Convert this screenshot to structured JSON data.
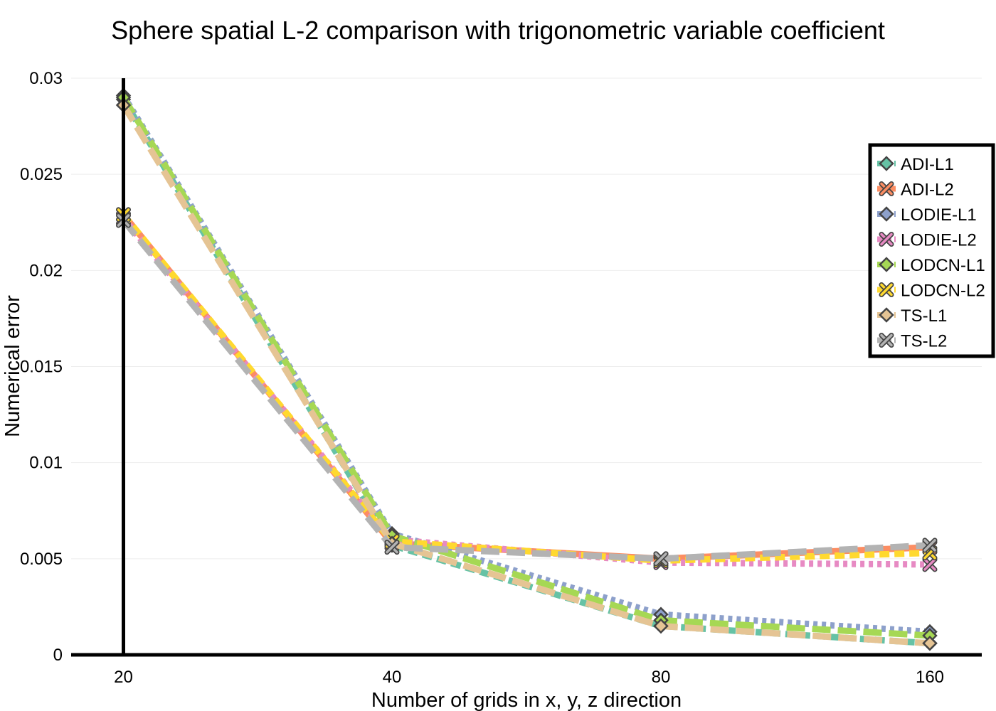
{
  "chart_data": {
    "type": "line",
    "title": "Sphere spatial L-2 comparison with trigonometric variable coefficient",
    "xlabel": "Number of grids in x, y, z direction",
    "ylabel": "Numerical error",
    "categories": [
      "20",
      "40",
      "80",
      "160"
    ],
    "y_ticks": [
      "0",
      "0.005",
      "0.01",
      "0.015",
      "0.02",
      "0.025",
      "0.03"
    ],
    "ylim": [
      0,
      0.03
    ],
    "grid": true,
    "legend_position": "right",
    "series": [
      {
        "name": "ADI-L1",
        "values": [
          0.0289,
          0.0057,
          0.0015,
          0.0006
        ],
        "color": "#66c2a5",
        "marker": "diamond",
        "dash": "dash"
      },
      {
        "name": "ADI-L2",
        "values": [
          0.0229,
          0.0058,
          0.005,
          0.0056
        ],
        "color": "#fc8d62",
        "marker": "x",
        "dash": "solid"
      },
      {
        "name": "LODIE-L1",
        "values": [
          0.0291,
          0.0063,
          0.0021,
          0.0012
        ],
        "color": "#8da0cb",
        "marker": "diamond",
        "dash": "dot"
      },
      {
        "name": "LODIE-L2",
        "values": [
          0.0227,
          0.006,
          0.0048,
          0.0047
        ],
        "color": "#e78ac3",
        "marker": "x",
        "dash": "dot"
      },
      {
        "name": "LODCN-L1",
        "values": [
          0.029,
          0.0062,
          0.0018,
          0.001
        ],
        "color": "#a6d854",
        "marker": "diamond",
        "dash": "longdash"
      },
      {
        "name": "LODCN-L2",
        "values": [
          0.0229,
          0.0059,
          0.0049,
          0.0053
        ],
        "color": "#ffd92f",
        "marker": "x",
        "dash": "dash"
      },
      {
        "name": "TS-L1",
        "values": [
          0.0286,
          0.0058,
          0.0015,
          0.0006
        ],
        "color": "#e5c494",
        "marker": "diamond",
        "dash": "longdash"
      },
      {
        "name": "TS-L2",
        "values": [
          0.0226,
          0.0056,
          0.005,
          0.0057
        ],
        "color": "#b3b3b3",
        "marker": "x",
        "dash": "longdash"
      }
    ]
  }
}
